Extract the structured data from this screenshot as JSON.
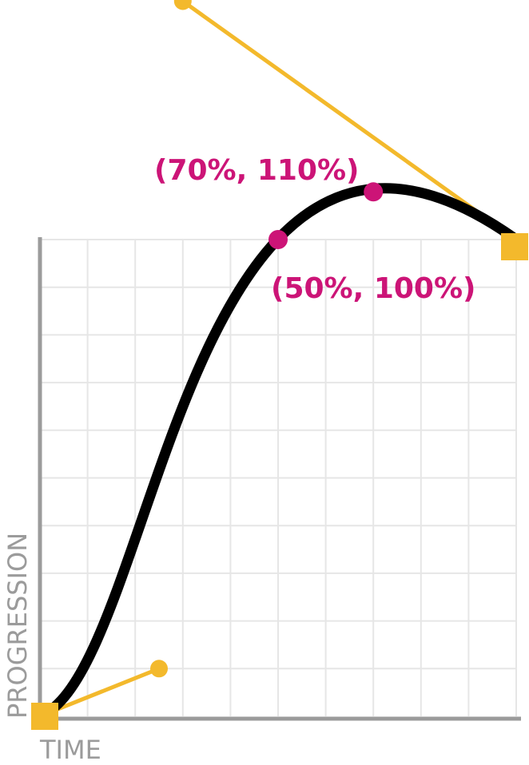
{
  "chart_data": {
    "type": "line",
    "xlabel": "TIME",
    "ylabel": "PROGRESSION",
    "xlim": [
      0,
      1
    ],
    "ylim": [
      0,
      1
    ],
    "grid": true,
    "curve": {
      "start": [
        0,
        0
      ],
      "end": [
        1,
        1
      ],
      "control_point_1": [
        0.25,
        0.1
      ],
      "control_point_2": [
        0.3,
        1.5
      ]
    },
    "highlighted_points": [
      {
        "x": 0.5,
        "y": 1.0,
        "label": "(50%, 100%)"
      },
      {
        "x": 0.7,
        "y": 1.1,
        "label": "(70%, 110%)"
      }
    ],
    "colors": {
      "curve": "#000000",
      "handles": "#f3b92c",
      "highlight": "#cc1477",
      "grid": "#e6e6e6",
      "axis": "#9b9b9b",
      "axis_text": "#9b9b9b"
    }
  }
}
